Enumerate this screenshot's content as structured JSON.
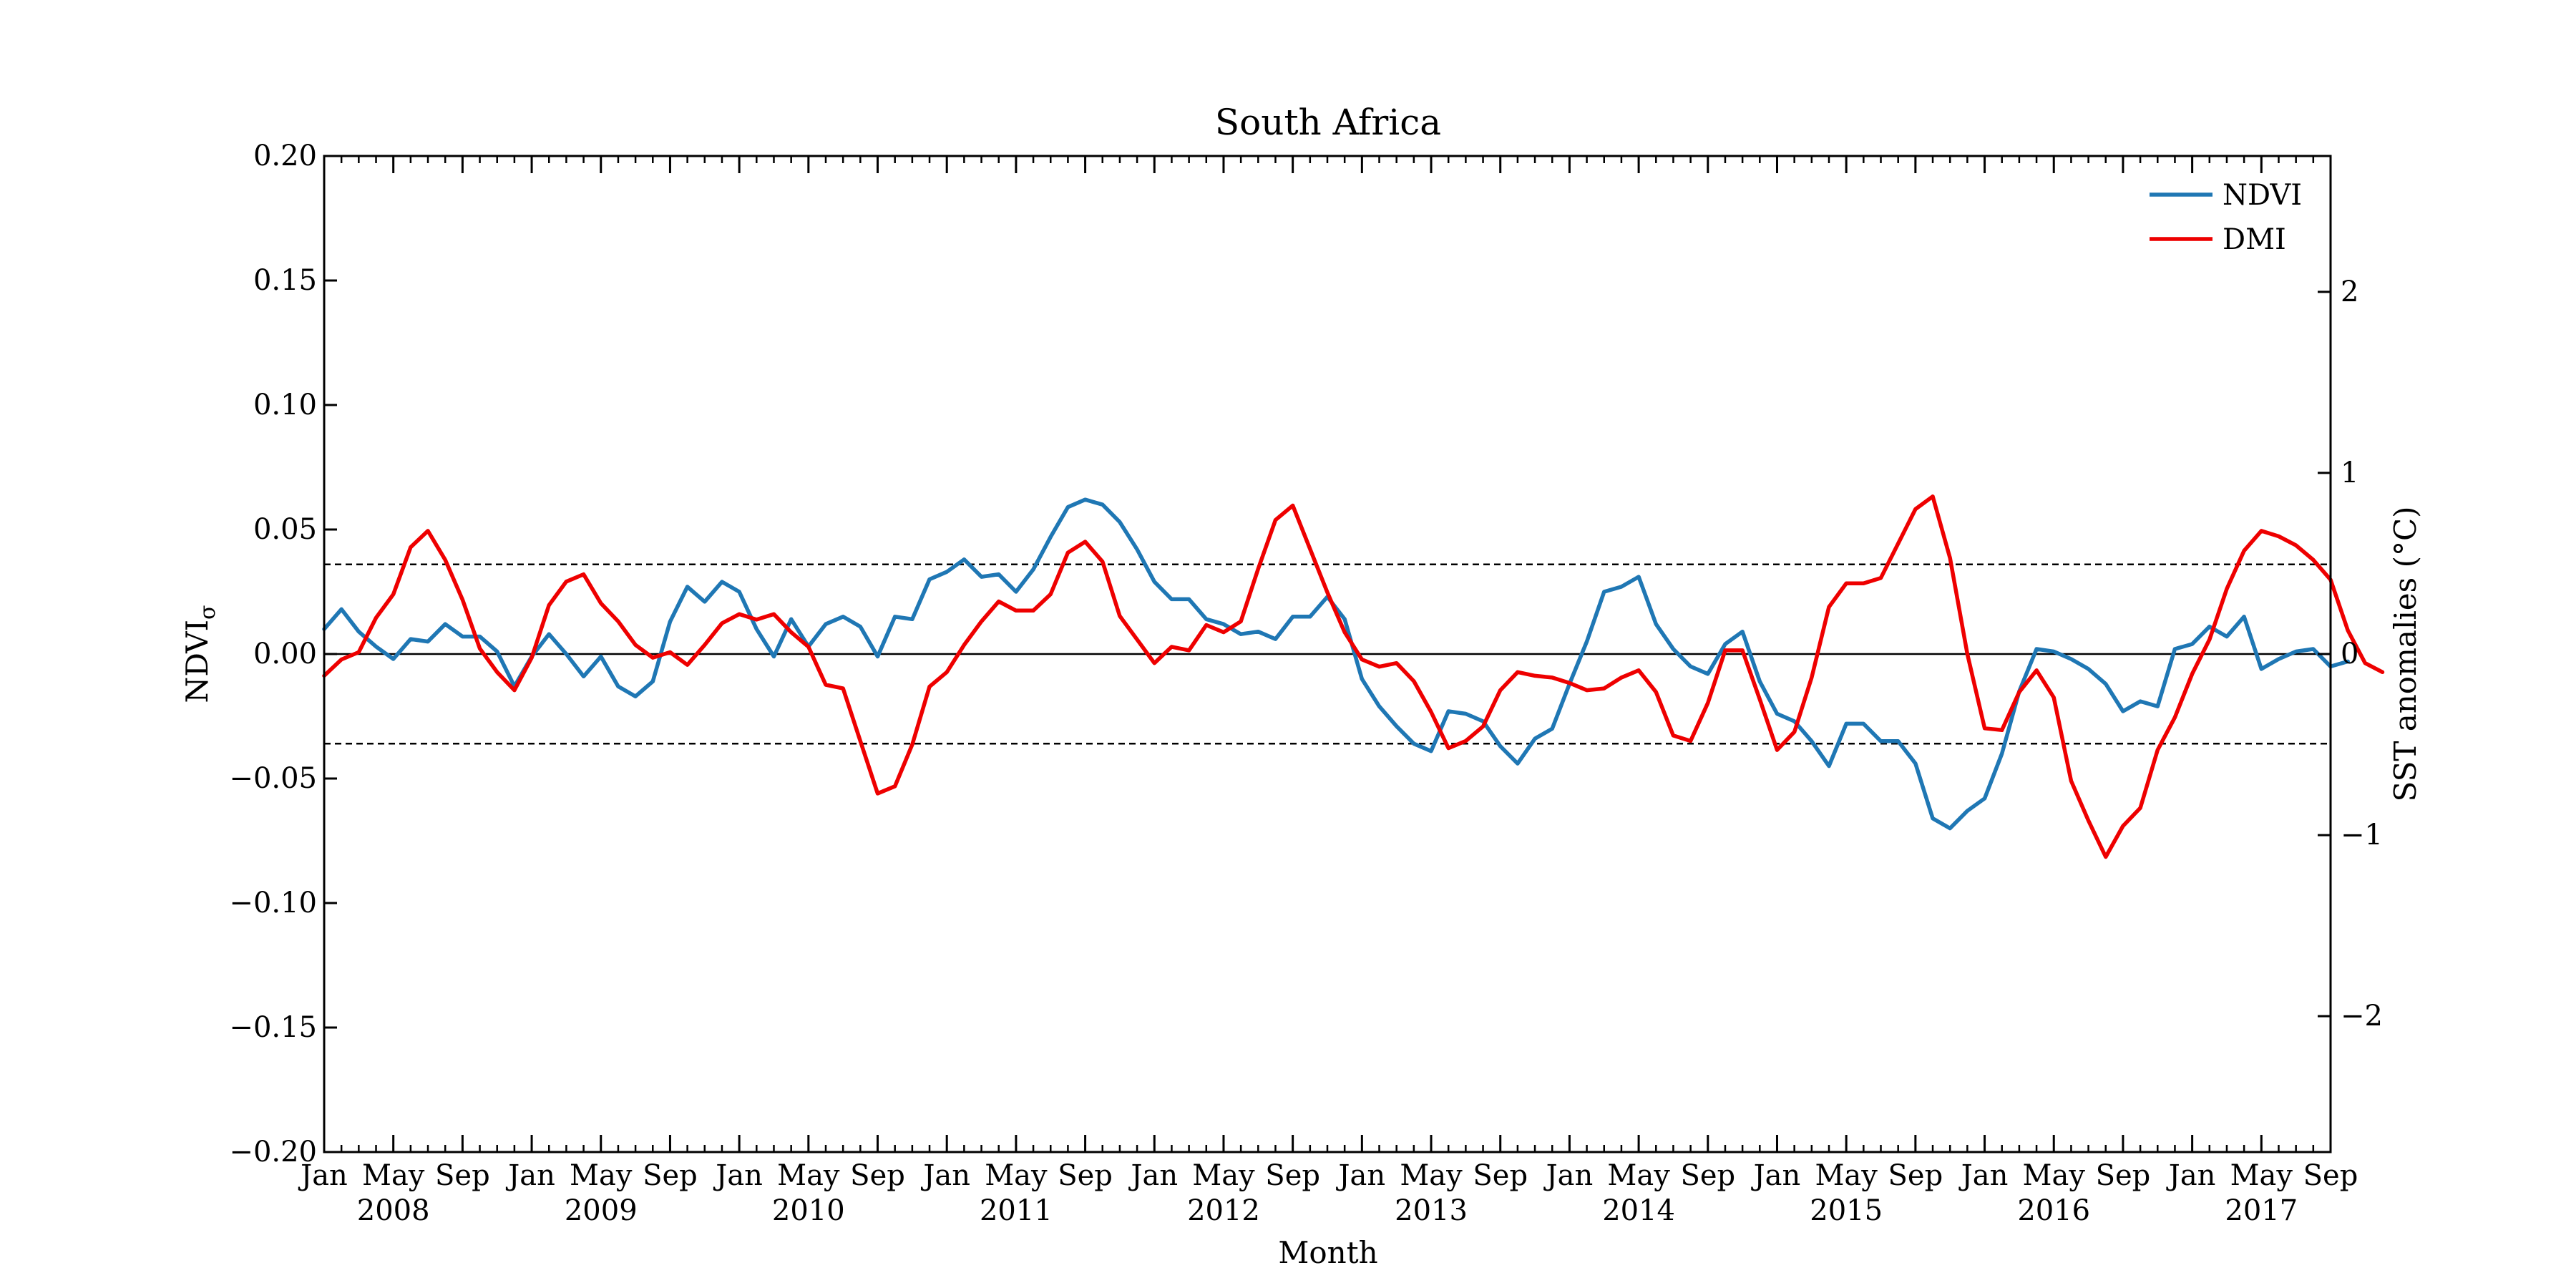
{
  "chart_data": {
    "type": "line",
    "title": "South Africa",
    "xlabel": "Month",
    "ylabel_left": "NDVI",
    "ylabel_left_subscript": "σ",
    "ylabel_right": "SST anomalies (°C)",
    "x_start": "2008-01",
    "x_end": "2017-09",
    "ylim_left": [
      -0.2,
      0.2
    ],
    "ylim_right": [
      -2.75,
      2.75
    ],
    "yticks_left": [
      -0.2,
      -0.15,
      -0.1,
      -0.05,
      0.0,
      0.05,
      0.1,
      0.15,
      0.2
    ],
    "yticks_left_labels": [
      "−0.20",
      "−0.15",
      "−0.10",
      "−0.05",
      "0.00",
      "0.05",
      "0.10",
      "0.15",
      "0.20"
    ],
    "yticks_right": [
      -2,
      -1,
      0,
      1,
      2
    ],
    "yticks_right_labels": [
      "−2",
      "−1",
      "0",
      "1",
      "2"
    ],
    "xtick_month_labels": [
      "Jan",
      "May",
      "Sep"
    ],
    "xtick_years": [
      "2008",
      "2009",
      "2010",
      "2011",
      "2012",
      "2013",
      "2014",
      "2015",
      "2016",
      "2017"
    ],
    "reference_lines_left": {
      "solid": 0.0,
      "dashed": [
        0.036,
        -0.036
      ]
    },
    "legend_position": "top-right",
    "grid": false,
    "series": [
      {
        "name": "NDVI",
        "axis": "left",
        "color": "#1f77b4",
        "values": [
          0.01,
          0.018,
          0.009,
          0.003,
          -0.002,
          0.006,
          0.005,
          0.012,
          0.007,
          0.007,
          0.001,
          -0.013,
          -0.001,
          0.008,
          0.0,
          -0.009,
          -0.001,
          -0.013,
          -0.017,
          -0.011,
          0.013,
          0.027,
          0.021,
          0.029,
          0.025,
          0.01,
          -0.001,
          0.014,
          0.003,
          0.012,
          0.015,
          0.011,
          -0.001,
          0.015,
          0.014,
          0.03,
          0.033,
          0.038,
          0.031,
          0.032,
          0.025,
          0.034,
          0.047,
          0.059,
          0.062,
          0.06,
          0.053,
          0.042,
          0.029,
          0.022,
          0.022,
          0.014,
          0.012,
          0.008,
          0.009,
          0.006,
          0.015,
          0.015,
          0.023,
          0.014,
          -0.01,
          -0.021,
          -0.029,
          -0.036,
          -0.039,
          -0.023,
          -0.024,
          -0.027,
          -0.037,
          -0.044,
          -0.034,
          -0.03,
          -0.012,
          0.005,
          0.025,
          0.027,
          0.031,
          0.012,
          0.002,
          -0.005,
          -0.008,
          0.004,
          0.009,
          -0.011,
          -0.024,
          -0.027,
          -0.035,
          -0.045,
          -0.028,
          -0.028,
          -0.035,
          -0.035,
          -0.044,
          -0.066,
          -0.07,
          -0.063,
          -0.058,
          -0.04,
          -0.015,
          0.002,
          0.001,
          -0.002,
          -0.006,
          -0.012,
          -0.023,
          -0.019,
          -0.021,
          0.002,
          0.004,
          0.011,
          0.007,
          0.015,
          -0.006,
          -0.002,
          0.001,
          0.002,
          -0.005,
          -0.003
        ]
      },
      {
        "name": "DMI",
        "axis": "right",
        "color": "#ee0000",
        "values": [
          -0.12,
          -0.03,
          0.01,
          0.2,
          0.33,
          0.59,
          0.68,
          0.52,
          0.3,
          0.03,
          -0.1,
          -0.2,
          -0.02,
          0.27,
          0.4,
          0.44,
          0.28,
          0.18,
          0.05,
          -0.02,
          0.01,
          -0.06,
          0.05,
          0.17,
          0.22,
          0.19,
          0.22,
          0.12,
          0.04,
          -0.17,
          -0.19,
          -0.48,
          -0.77,
          -0.73,
          -0.5,
          -0.18,
          -0.1,
          0.05,
          0.18,
          0.29,
          0.24,
          0.24,
          0.33,
          0.56,
          0.62,
          0.51,
          0.21,
          0.08,
          -0.05,
          0.04,
          0.02,
          0.16,
          0.12,
          0.18,
          0.47,
          0.74,
          0.82,
          0.58,
          0.34,
          0.12,
          -0.03,
          -0.07,
          -0.05,
          -0.15,
          -0.32,
          -0.52,
          -0.48,
          -0.4,
          -0.2,
          -0.1,
          -0.12,
          -0.13,
          -0.16,
          -0.2,
          -0.19,
          -0.13,
          -0.09,
          -0.21,
          -0.45,
          -0.48,
          -0.27,
          0.02,
          0.02,
          -0.25,
          -0.53,
          -0.43,
          -0.13,
          0.26,
          0.39,
          0.39,
          0.42,
          0.61,
          0.8,
          0.87,
          0.53,
          0.0,
          -0.41,
          -0.42,
          -0.21,
          -0.09,
          -0.24,
          -0.7,
          -0.92,
          -1.12,
          -0.95,
          -0.85,
          -0.53,
          -0.35,
          -0.11,
          0.08,
          0.36,
          0.57,
          0.68,
          0.65,
          0.6,
          0.52,
          0.41,
          0.13,
          -0.05,
          -0.1
        ]
      }
    ]
  }
}
